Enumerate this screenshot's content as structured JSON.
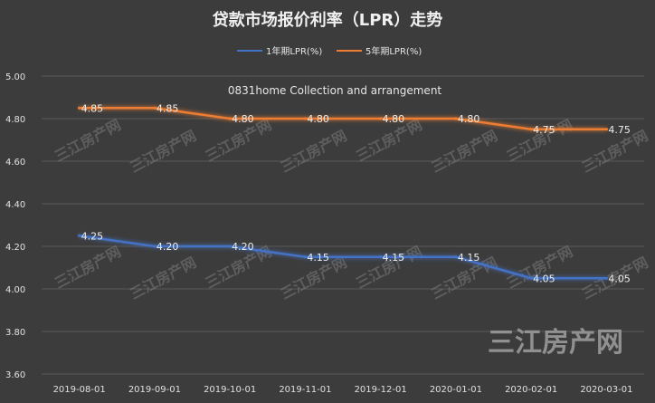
{
  "title": "贷款市场报价利率（LPR）走势",
  "note": "0831home Collection and arrangement",
  "watermark": "三江房产网",
  "chart_data": {
    "type": "line",
    "title": "贷款市场报价利率（LPR）走势",
    "categories": [
      "2019-08-01",
      "2019-09-01",
      "2019-10-01",
      "2019-11-01",
      "2019-12-01",
      "2020-01-01",
      "2020-02-01",
      "2020-03-01"
    ],
    "series": [
      {
        "name": "1年期LPR(%)",
        "color": "#4472c4",
        "values": [
          4.25,
          4.2,
          4.2,
          4.15,
          4.15,
          4.15,
          4.05,
          4.05
        ],
        "labels": [
          "4.25",
          "4.20",
          "4.20",
          "4.15",
          "4.15",
          "4.15",
          "4.05",
          "4.05"
        ]
      },
      {
        "name": "5年期LPR(%)",
        "color": "#ed7d31",
        "values": [
          4.85,
          4.85,
          4.8,
          4.8,
          4.8,
          4.8,
          4.75,
          4.75
        ],
        "labels": [
          "4.85",
          "4.85",
          "4.80",
          "4.80",
          "4.80",
          "4.80",
          "4.75",
          "4.75"
        ]
      }
    ],
    "yticks": [
      "3.60",
      "3.80",
      "4.00",
      "4.20",
      "4.40",
      "4.60",
      "4.80",
      "5.00"
    ],
    "ylim": [
      3.6,
      5.0
    ],
    "grid": true,
    "legend_position": "top"
  }
}
